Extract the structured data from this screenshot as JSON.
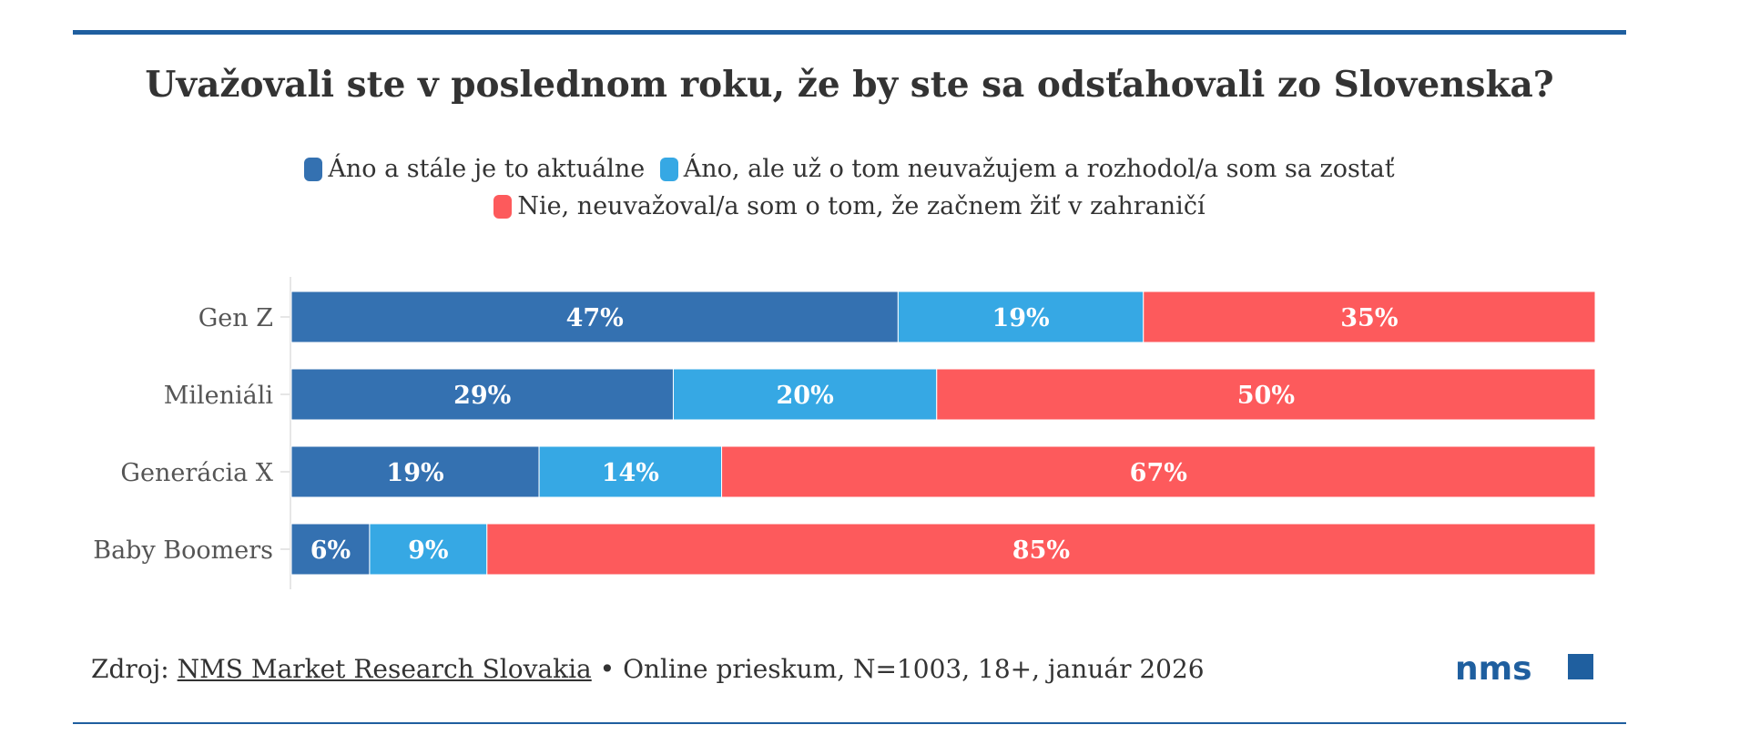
{
  "title": "Uvažovali ste v poslednom roku, že by ste sa odsťahovali zo Slovenska?",
  "chart_data": {
    "type": "bar",
    "orientation": "horizontal",
    "stacked": true,
    "percent_stacked": true,
    "categories": [
      "Gen Z",
      "Mileniáli",
      "Generácia X",
      "Baby Boomers"
    ],
    "series": [
      {
        "name": "Áno a stále je to aktuálne",
        "color": "#3471b1",
        "values": [
          47,
          29,
          19,
          6
        ],
        "labels": [
          "47%",
          "29%",
          "19%",
          "6%"
        ]
      },
      {
        "name": "Áno, ale už o tom neuvažujem a rozhodol/a som sa zostať",
        "color": "#36a8e4",
        "values": [
          19,
          20,
          14,
          9
        ],
        "labels": [
          "19%",
          "20%",
          "14%",
          "9%"
        ]
      },
      {
        "name": "Nie, neuvažoval/a som o tom, že začnem žiť v zahraničí",
        "color": "#fd5a5c",
        "values": [
          35,
          50,
          67,
          85
        ],
        "labels": [
          "35%",
          "50%",
          "67%",
          "85%"
        ]
      }
    ],
    "legend_position": "top-center",
    "grid": false
  },
  "footer": {
    "prefix": "Zdroj: ",
    "source_link": "NMS Market Research Slovakia",
    "suffix": " • Online prieskum, N=1003, 18+, január 2026"
  },
  "logo": {
    "text": "nms",
    "color": "#1f5f9f",
    "icon": "square-icon"
  }
}
